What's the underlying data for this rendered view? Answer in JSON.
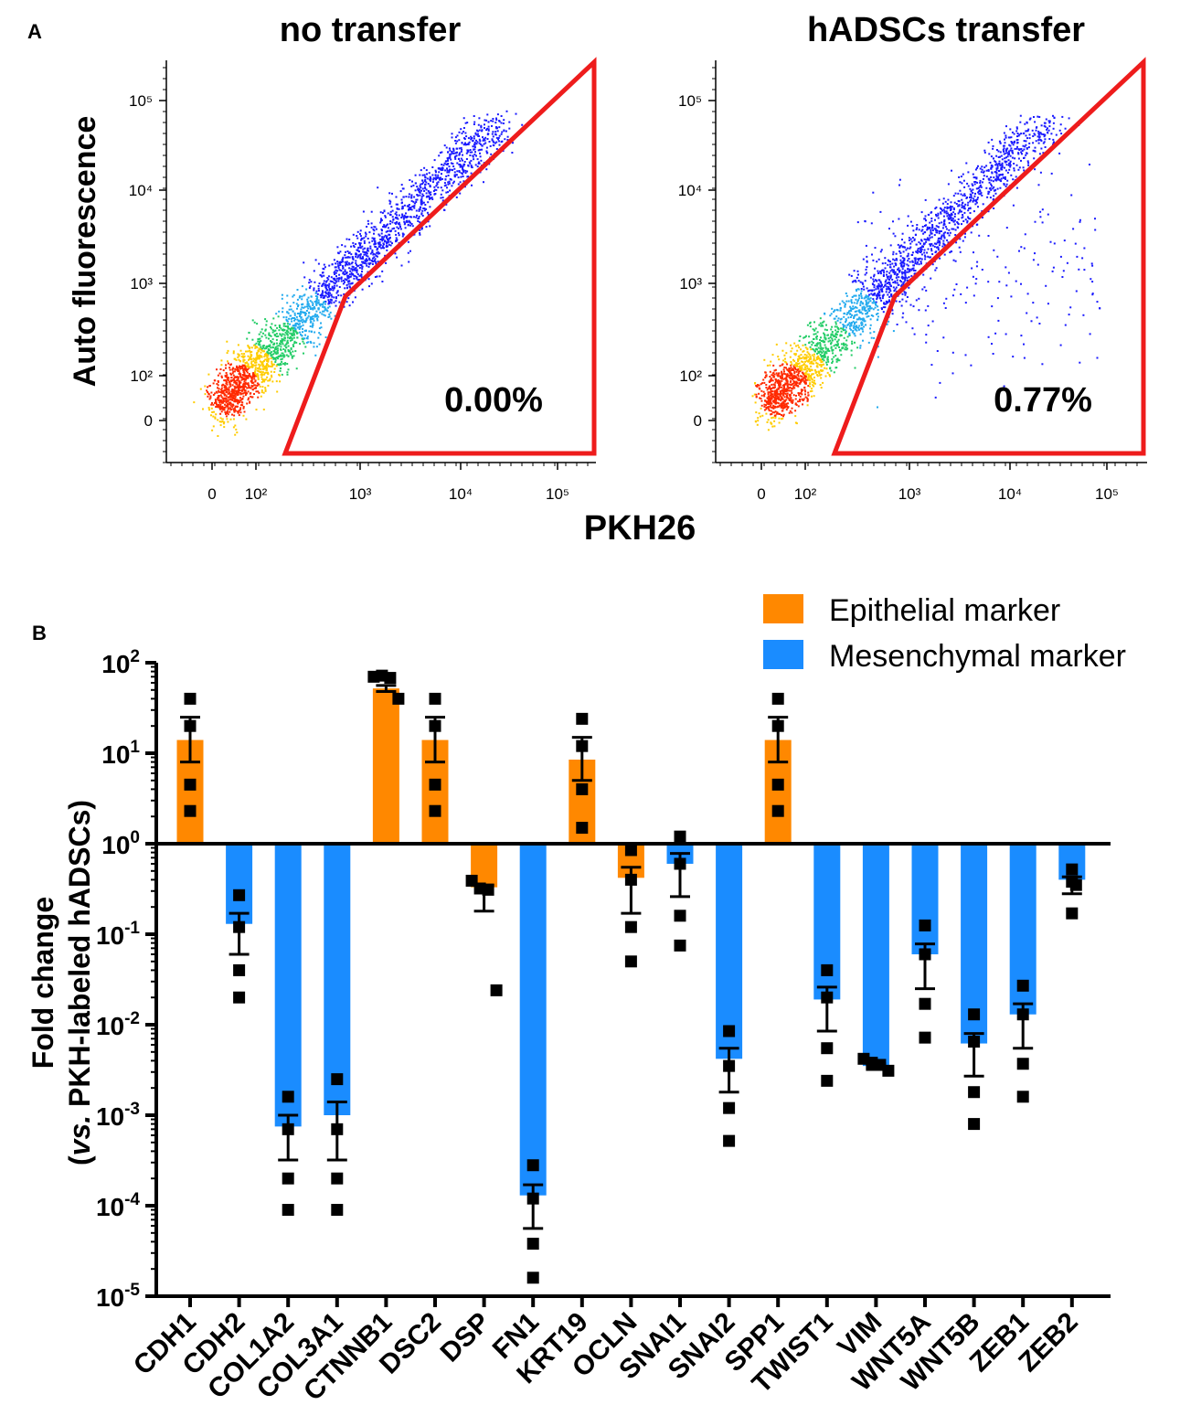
{
  "panel_a": {
    "label": "A",
    "x_axis_label": "PKH26",
    "y_axis_label": "Auto fluorescence",
    "colors": {
      "gate": "#ee1c1c",
      "density_low": "#1a1aff",
      "density_mid": "#22cc66",
      "density_high": "#ff2a00"
    }
  },
  "panel_b": {
    "label": "B",
    "colors": {
      "epithelial": "#ff8800",
      "mesenchymal": "#1a8cff",
      "points": "#000000"
    }
  },
  "chart_data": [
    {
      "type": "scatter",
      "title": "no transfer",
      "xlabel": "PKH26",
      "ylabel": "Auto fluorescence",
      "x_scale": "biexponential",
      "y_scale": "biexponential",
      "x_ticks": [
        "0",
        "10²",
        "10³",
        "10⁴",
        "10⁵"
      ],
      "y_ticks": [
        "0",
        "10²",
        "10³",
        "10⁴",
        "10⁵"
      ],
      "gate_percent": "0.00%"
    },
    {
      "type": "scatter",
      "title": "hADSCs transfer",
      "xlabel": "PKH26",
      "ylabel": "Auto fluorescence",
      "x_scale": "biexponential",
      "y_scale": "biexponential",
      "x_ticks": [
        "0",
        "10²",
        "10³",
        "10⁴",
        "10⁵"
      ],
      "y_ticks": [
        "0",
        "10²",
        "10³",
        "10⁴",
        "10⁵"
      ],
      "gate_percent": "0.77%"
    },
    {
      "type": "bar",
      "ylabel_line1": "Fold change",
      "ylabel_line2_italic": "vs.",
      "ylabel_line2_rest": " PKH-labeled hADSCs)",
      "ylabel_line2_open": "(",
      "y_scale": "log",
      "ylim": [
        1e-05,
        100
      ],
      "y_ticks": [
        {
          "base": "10",
          "exp": "2",
          "value": 100
        },
        {
          "base": "10",
          "exp": "1",
          "value": 10
        },
        {
          "base": "10",
          "exp": "0",
          "value": 1
        },
        {
          "base": "10",
          "exp": "-1",
          "value": 0.1
        },
        {
          "base": "10",
          "exp": "-2",
          "value": 0.01
        },
        {
          "base": "10",
          "exp": "-3",
          "value": 0.001
        },
        {
          "base": "10",
          "exp": "-4",
          "value": 0.0001
        },
        {
          "base": "10",
          "exp": "-5",
          "value": 1e-05
        }
      ],
      "legend": [
        {
          "name": "Epithelial marker",
          "color": "#ff8800"
        },
        {
          "name": "Mesenchymal marker",
          "color": "#1a8cff"
        }
      ],
      "legend_position": "top-right",
      "categories": [
        "CDH1",
        "CDH2",
        "COL1A2",
        "COL3A1",
        "CTNNB1",
        "DSC2",
        "DSP",
        "FN1",
        "KRT19",
        "OCLN",
        "SNAI1",
        "SNAI2",
        "SPP1",
        "TWIST1",
        "VIM",
        "WNT5A",
        "WNT5B",
        "ZEB1",
        "ZEB2"
      ],
      "group": [
        "epithelial",
        "mesenchymal",
        "mesenchymal",
        "mesenchymal",
        "epithelial",
        "epithelial",
        "epithelial",
        "mesenchymal",
        "epithelial",
        "epithelial",
        "mesenchymal",
        "mesenchymal",
        "epithelial",
        "mesenchymal",
        "mesenchymal",
        "mesenchymal",
        "mesenchymal",
        "mesenchymal",
        "mesenchymal"
      ],
      "values": [
        14,
        0.13,
        0.00075,
        0.001,
        52,
        14,
        0.33,
        0.00013,
        8.5,
        0.42,
        0.6,
        0.0042,
        14,
        0.019,
        0.0035,
        0.06,
        0.0062,
        0.013,
        0.4
      ],
      "sem_upper": [
        25,
        0.17,
        0.001,
        0.0014,
        56,
        25,
        0.35,
        0.00017,
        15,
        0.55,
        0.78,
        0.0055,
        25,
        0.026,
        0.0037,
        0.078,
        0.008,
        0.017,
        0.43
      ],
      "sem_lower": [
        8,
        0.06,
        0.00032,
        0.00032,
        48,
        8,
        0.18,
        5.6e-05,
        5,
        0.17,
        0.26,
        0.0018,
        8,
        0.0085,
        0.0032,
        0.025,
        0.0027,
        0.0055,
        0.28
      ],
      "points": [
        [
          40,
          20,
          4.5,
          2.3
        ],
        [
          0.27,
          0.12,
          0.04,
          0.02
        ],
        [
          0.0016,
          0.0007,
          0.0002,
          9e-05
        ],
        [
          0.0025,
          0.0007,
          0.0002,
          9e-05
        ],
        [
          70,
          72,
          68,
          40
        ],
        [
          40,
          20,
          4.5,
          2.3
        ],
        [
          0.39,
          0.32,
          0.31,
          0.024
        ],
        [
          0.00028,
          0.00012,
          3.8e-05,
          1.6e-05
        ],
        [
          24,
          12,
          4,
          1.5
        ],
        [
          0.85,
          0.4,
          0.12,
          0.05
        ],
        [
          1.2,
          0.6,
          0.16,
          0.075
        ],
        [
          0.0085,
          0.0035,
          0.0012,
          0.00052
        ],
        [
          40,
          20,
          4.5,
          2.3
        ],
        [
          0.04,
          0.02,
          0.0055,
          0.0024
        ],
        [
          0.0042,
          0.0038,
          0.0036,
          0.0031
        ],
        [
          0.125,
          0.06,
          0.017,
          0.0072
        ],
        [
          0.013,
          0.0065,
          0.0018,
          0.0008
        ],
        [
          0.027,
          0.013,
          0.0037,
          0.0016
        ],
        [
          0.52,
          0.38,
          0.35,
          0.17
        ]
      ]
    }
  ]
}
